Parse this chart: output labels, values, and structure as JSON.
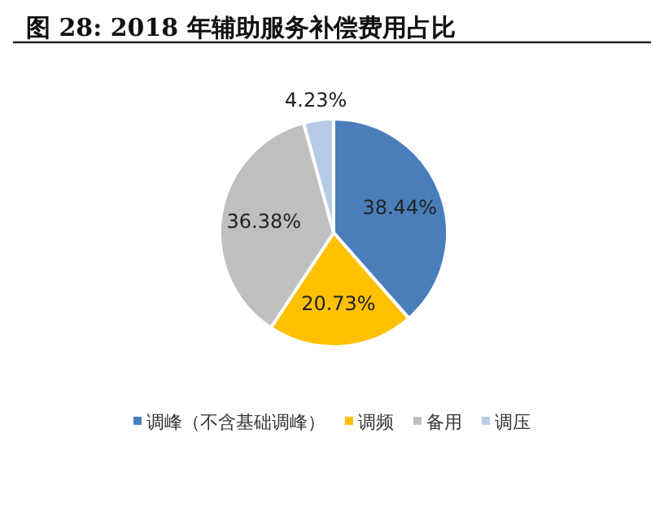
{
  "chart_data": {
    "type": "pie",
    "title": "图 28: 2018 年辅助服务补偿费用占比",
    "categories": [
      "调峰（不含基础调峰）",
      "调频",
      "备用",
      "调压"
    ],
    "values": [
      38.44,
      20.73,
      36.38,
      4.23
    ],
    "colors": [
      "#4a7ebb",
      "#ffc000",
      "#bfbfbf",
      "#b7cae6"
    ],
    "value_labels": [
      "38.44%",
      "20.73%",
      "36.38%",
      "4.23%"
    ],
    "legend": "bottom"
  }
}
